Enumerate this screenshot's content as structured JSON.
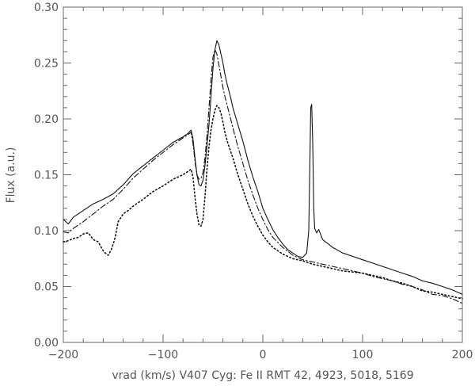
{
  "chart_data": {
    "type": "line",
    "title": "",
    "xlabel": "vrad (km/s)   V407 Cyg: Fe II RMT 42, 4923, 5018, 5169",
    "ylabel": "Flux (a.u.)",
    "xlim": [
      -200,
      200
    ],
    "ylim": [
      0.0,
      0.3
    ],
    "xticks": [
      -200,
      -100,
      0,
      100,
      200
    ],
    "xtick_labels": [
      "−200",
      "−100",
      "0",
      "100",
      "200"
    ],
    "yticks": [
      0.0,
      0.05,
      0.1,
      0.15,
      0.2,
      0.25,
      0.3
    ],
    "ytick_labels": [
      "0.00",
      "0.05",
      "0.10",
      "0.15",
      "0.20",
      "0.25",
      "0.30"
    ],
    "grid": false,
    "series": [
      {
        "style": "solid",
        "x": [
          -200,
          -195,
          -190,
          -180,
          -170,
          -160,
          -150,
          -140,
          -130,
          -120,
          -110,
          -100,
          -90,
          -80,
          -75,
          -72,
          -70,
          -68,
          -66,
          -64,
          -62,
          -60,
          -58,
          -56,
          -54,
          -52,
          -50,
          -48,
          -46,
          -44,
          -42,
          -40,
          -38,
          -36,
          -34,
          -32,
          -30,
          -25,
          -20,
          -15,
          -10,
          -5,
          0,
          5,
          10,
          15,
          20,
          25,
          30,
          35,
          40,
          44,
          46,
          47,
          48,
          49,
          50,
          51,
          52,
          54,
          56,
          60,
          70,
          80,
          90,
          100,
          110,
          120,
          130,
          140,
          150,
          160,
          170,
          180,
          190,
          200
        ],
        "y": [
          0.11,
          0.106,
          0.112,
          0.118,
          0.124,
          0.128,
          0.133,
          0.141,
          0.151,
          0.158,
          0.165,
          0.172,
          0.179,
          0.184,
          0.187,
          0.19,
          0.182,
          0.165,
          0.15,
          0.141,
          0.14,
          0.145,
          0.158,
          0.175,
          0.195,
          0.22,
          0.245,
          0.262,
          0.27,
          0.266,
          0.258,
          0.25,
          0.24,
          0.232,
          0.225,
          0.218,
          0.21,
          0.195,
          0.18,
          0.163,
          0.148,
          0.135,
          0.12,
          0.11,
          0.101,
          0.094,
          0.088,
          0.083,
          0.08,
          0.077,
          0.076,
          0.08,
          0.1,
          0.15,
          0.21,
          0.213,
          0.18,
          0.12,
          0.102,
          0.098,
          0.101,
          0.092,
          0.085,
          0.08,
          0.077,
          0.074,
          0.071,
          0.068,
          0.065,
          0.062,
          0.059,
          0.055,
          0.053,
          0.05,
          0.047,
          0.043
        ]
      },
      {
        "style": "dash-dot",
        "x": [
          -200,
          -195,
          -190,
          -180,
          -170,
          -160,
          -150,
          -140,
          -130,
          -120,
          -110,
          -100,
          -90,
          -80,
          -75,
          -72,
          -70,
          -68,
          -66,
          -64,
          -62,
          -60,
          -58,
          -56,
          -54,
          -52,
          -50,
          -48,
          -46,
          -44,
          -42,
          -40,
          -38,
          -36,
          -34,
          -32,
          -30,
          -25,
          -20,
          -15,
          -10,
          -5,
          0,
          5,
          10,
          20,
          30,
          40,
          50,
          60,
          70,
          80,
          90,
          100,
          110,
          120,
          130,
          140,
          150,
          160,
          170,
          180,
          190,
          200
        ],
        "y": [
          0.099,
          0.098,
          0.102,
          0.108,
          0.115,
          0.122,
          0.128,
          0.137,
          0.147,
          0.155,
          0.163,
          0.17,
          0.177,
          0.183,
          0.186,
          0.188,
          0.178,
          0.162,
          0.15,
          0.146,
          0.147,
          0.152,
          0.165,
          0.185,
          0.21,
          0.235,
          0.255,
          0.262,
          0.258,
          0.248,
          0.238,
          0.228,
          0.22,
          0.213,
          0.206,
          0.199,
          0.192,
          0.175,
          0.16,
          0.145,
          0.132,
          0.12,
          0.11,
          0.101,
          0.094,
          0.085,
          0.078,
          0.074,
          0.072,
          0.07,
          0.068,
          0.066,
          0.064,
          0.062,
          0.059,
          0.057,
          0.055,
          0.052,
          0.05,
          0.047,
          0.043,
          0.042,
          0.039,
          0.035
        ]
      },
      {
        "style": "dotted",
        "x": [
          -200,
          -195,
          -190,
          -185,
          -180,
          -175,
          -170,
          -165,
          -162,
          -160,
          -158,
          -155,
          -152,
          -150,
          -148,
          -145,
          -140,
          -135,
          -130,
          -120,
          -110,
          -100,
          -90,
          -80,
          -75,
          -72,
          -70,
          -68,
          -66,
          -64,
          -62,
          -60,
          -58,
          -56,
          -54,
          -52,
          -50,
          -48,
          -46,
          -44,
          -42,
          -40,
          -38,
          -35,
          -30,
          -25,
          -20,
          -15,
          -10,
          -5,
          0,
          5,
          10,
          20,
          30,
          40,
          50,
          60,
          70,
          80,
          90,
          100,
          110,
          120,
          130,
          140,
          150,
          160,
          170,
          180,
          190,
          200
        ],
        "y": [
          0.09,
          0.091,
          0.093,
          0.094,
          0.097,
          0.098,
          0.092,
          0.09,
          0.085,
          0.082,
          0.08,
          0.078,
          0.083,
          0.088,
          0.094,
          0.108,
          0.115,
          0.118,
          0.122,
          0.128,
          0.135,
          0.14,
          0.146,
          0.15,
          0.153,
          0.155,
          0.148,
          0.13,
          0.115,
          0.105,
          0.104,
          0.11,
          0.13,
          0.155,
          0.175,
          0.19,
          0.2,
          0.208,
          0.212,
          0.21,
          0.205,
          0.197,
          0.188,
          0.178,
          0.165,
          0.15,
          0.137,
          0.124,
          0.113,
          0.104,
          0.096,
          0.09,
          0.085,
          0.079,
          0.075,
          0.073,
          0.07,
          0.068,
          0.066,
          0.064,
          0.063,
          0.062,
          0.06,
          0.058,
          0.055,
          0.053,
          0.05,
          0.046,
          0.045,
          0.043,
          0.041,
          0.039
        ]
      }
    ]
  }
}
